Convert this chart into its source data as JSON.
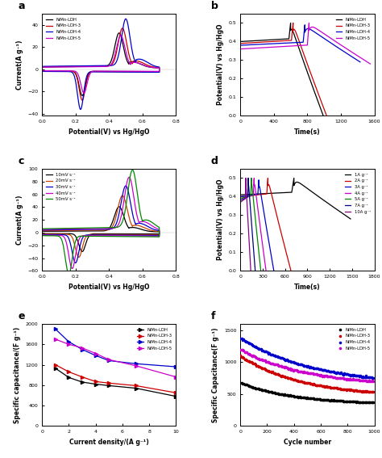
{
  "panel_a": {
    "label": "a",
    "xlabel": "Potential(V) vs Hg/HgO",
    "ylabel": "Current(A g⁻¹)",
    "xlim": [
      0.0,
      0.8
    ],
    "ylim": [
      -42,
      50
    ],
    "xticks": [
      0.0,
      0.2,
      0.4,
      0.6,
      0.8
    ],
    "legend": [
      "NiMn-LDH",
      "NiMn-LDH-3",
      "NiMn-LDH-4",
      "NiMn-LDH-5"
    ],
    "colors": [
      "#000000",
      "#cc0000",
      "#0000cc",
      "#cc00cc"
    ],
    "curves": [
      {
        "anodic_peak": 0.46,
        "anodic_amp": 30,
        "cathodic_peak": 0.24,
        "cathodic_amp": 22,
        "base": 2.0
      },
      {
        "anodic_peak": 0.48,
        "anodic_amp": 34,
        "cathodic_peak": 0.24,
        "cathodic_amp": 26,
        "base": 2.2
      },
      {
        "anodic_peak": 0.5,
        "anodic_amp": 42,
        "cathodic_peak": 0.23,
        "cathodic_amp": 34,
        "base": 2.5
      },
      {
        "anodic_peak": 0.47,
        "anodic_amp": 28,
        "cathodic_peak": 0.25,
        "cathodic_amp": 20,
        "base": 1.8
      }
    ]
  },
  "panel_b": {
    "label": "b",
    "xlabel": "Time(s)",
    "ylabel": "Potential(V) vs Hg/HgO",
    "xlim": [
      0,
      1600
    ],
    "ylim": [
      0.0,
      0.55
    ],
    "xticks": [
      0,
      400,
      800,
      1200,
      1600
    ],
    "yticks": [
      0.0,
      0.1,
      0.2,
      0.3,
      0.4,
      0.5
    ],
    "legend": [
      "NiMn-LDH",
      "NiMn-LDH-3",
      "NiMn-LDH-4",
      "NiMn-LDH-5"
    ],
    "colors": [
      "#000000",
      "#cc0000",
      "#0000cc",
      "#cc00cc"
    ],
    "curves": [
      {
        "v_flat": 0.4,
        "v_peak": 0.5,
        "t_rise": 580,
        "t_peak": 600,
        "t_disc_end": 990,
        "v_disc_end": 0.0
      },
      {
        "v_flat": 0.39,
        "v_peak": 0.5,
        "t_rise": 610,
        "t_peak": 630,
        "t_disc_end": 1030,
        "v_disc_end": 0.0
      },
      {
        "v_flat": 0.38,
        "v_peak": 0.49,
        "t_rise": 750,
        "t_peak": 770,
        "t_disc_end": 1430,
        "v_disc_end": 0.29
      },
      {
        "v_flat": 0.36,
        "v_peak": 0.5,
        "t_rise": 800,
        "t_peak": 820,
        "t_disc_end": 1550,
        "v_disc_end": 0.28
      }
    ]
  },
  "panel_c": {
    "label": "c",
    "xlabel": "Potential(V) vs Hg/HgO",
    "ylabel": "Current(A g⁻¹)",
    "xlim": [
      0.0,
      0.8
    ],
    "ylim": [
      -60,
      100
    ],
    "xticks": [
      0.0,
      0.2,
      0.4,
      0.6,
      0.8
    ],
    "legend": [
      "10mV s⁻¹",
      "20mV s⁻¹",
      "30mV s⁻¹",
      "40mV s⁻¹",
      "50mV s⁻¹"
    ],
    "colors": [
      "#000000",
      "#cc4400",
      "#0000cc",
      "#cc00cc",
      "#008800"
    ],
    "curves": [
      {
        "anodic_peak": 0.46,
        "anodic_amp": 38,
        "cathodic_peak": 0.24,
        "cathodic_amp": 28,
        "base": 2.0
      },
      {
        "anodic_peak": 0.48,
        "anodic_amp": 54,
        "cathodic_peak": 0.22,
        "cathodic_amp": 36,
        "base": 3.0
      },
      {
        "anodic_peak": 0.5,
        "anodic_amp": 68,
        "cathodic_peak": 0.2,
        "cathodic_amp": 44,
        "base": 4.0
      },
      {
        "anodic_peak": 0.52,
        "anodic_amp": 80,
        "cathodic_peak": 0.18,
        "cathodic_amp": 52,
        "base": 5.0
      },
      {
        "anodic_peak": 0.54,
        "anodic_amp": 90,
        "cathodic_peak": 0.16,
        "cathodic_amp": 60,
        "base": 6.0
      }
    ]
  },
  "panel_d": {
    "label": "d",
    "xlabel": "Time(s)",
    "ylabel": "Potential(V) vs Hg/HgO",
    "xlim": [
      0,
      1800
    ],
    "ylim": [
      0.0,
      0.55
    ],
    "xticks": [
      0,
      300,
      600,
      900,
      1200,
      1500,
      1800
    ],
    "yticks": [
      0.0,
      0.1,
      0.2,
      0.3,
      0.4,
      0.5
    ],
    "legend": [
      "1A g⁻¹",
      "2A g⁻¹",
      "3A g⁻¹",
      "4A g⁻¹",
      "5A g⁻¹",
      "7A g⁻¹",
      "10A g⁻¹"
    ],
    "colors": [
      "#000000",
      "#cc0000",
      "#0000cc",
      "#cc00cc",
      "#008800",
      "#000088",
      "#880088"
    ],
    "curves": [
      {
        "v_flat": 0.41,
        "v_peak": 0.5,
        "t_rise": 690,
        "t_peak": 720,
        "t_disc_end": 1480,
        "v_disc_end": 0.28
      },
      {
        "v_flat": 0.4,
        "v_peak": 0.5,
        "t_rise": 355,
        "t_peak": 370,
        "t_disc_end": 680,
        "v_disc_end": 0.0
      },
      {
        "v_flat": 0.4,
        "v_peak": 0.49,
        "t_rise": 235,
        "t_peak": 248,
        "t_disc_end": 450,
        "v_disc_end": 0.0
      },
      {
        "v_flat": 0.39,
        "v_peak": 0.5,
        "t_rise": 175,
        "t_peak": 185,
        "t_disc_end": 345,
        "v_disc_end": 0.0
      },
      {
        "v_flat": 0.39,
        "v_peak": 0.5,
        "t_rise": 140,
        "t_peak": 148,
        "t_disc_end": 275,
        "v_disc_end": 0.0
      },
      {
        "v_flat": 0.38,
        "v_peak": 0.5,
        "t_rise": 100,
        "t_peak": 106,
        "t_disc_end": 200,
        "v_disc_end": 0.0
      },
      {
        "v_flat": 0.37,
        "v_peak": 0.5,
        "t_rise": 68,
        "t_peak": 72,
        "t_disc_end": 140,
        "v_disc_end": 0.0
      }
    ]
  },
  "panel_e": {
    "label": "e",
    "xlabel": "Current density/(A g⁻¹)",
    "ylabel": "Specific capacitance/(F g⁻¹)",
    "xlim": [
      0,
      10
    ],
    "ylim": [
      0,
      2000
    ],
    "xticks": [
      0,
      2,
      4,
      6,
      8,
      10
    ],
    "yticks": [
      0,
      400,
      800,
      1200,
      1600,
      2000
    ],
    "legend": [
      "NiMn-LDH",
      "NiMn-LDH-3",
      "NiMn-LDH-4",
      "NiMn-LDH-5"
    ],
    "colors": [
      "#000000",
      "#cc0000",
      "#0000cc",
      "#cc00cc"
    ],
    "data": {
      "x": [
        1,
        2,
        3,
        4,
        5,
        7,
        10
      ],
      "NiMn-LDH": [
        1130,
        950,
        860,
        820,
        790,
        740,
        580
      ],
      "NiMn-LDH-3": [
        1200,
        1060,
        960,
        870,
        840,
        790,
        650
      ],
      "NiMn-LDH-4": [
        1900,
        1650,
        1500,
        1380,
        1280,
        1220,
        1160
      ],
      "NiMn-LDH-5": [
        1700,
        1600,
        1530,
        1420,
        1300,
        1180,
        960
      ]
    }
  },
  "panel_f": {
    "label": "f",
    "xlabel": "Cycle number",
    "ylabel": "Specific Capacitance(F g⁻¹)",
    "xlim": [
      0,
      1000
    ],
    "ylim": [
      0,
      1600
    ],
    "xticks": [
      0,
      200,
      400,
      600,
      800,
      1000
    ],
    "yticks": [
      0,
      500,
      1000,
      1500
    ],
    "legend": [
      "NiMn-LDH",
      "NiMn-LDH-3",
      "NiMn-LDH-4",
      "NiMn-LDH-5"
    ],
    "colors": [
      "#000000",
      "#cc0000",
      "#0000cc",
      "#cc00cc"
    ],
    "data": {
      "x_dense": 50,
      "NiMn-LDH": {
        "start": 680,
        "end": 340,
        "decay": 0.0025
      },
      "NiMn-LDH-3": {
        "start": 1100,
        "end": 460,
        "decay": 0.0022
      },
      "NiMn-LDH-4": {
        "start": 1380,
        "end": 630,
        "decay": 0.0018
      },
      "NiMn-LDH-5": {
        "start": 1200,
        "end": 620,
        "decay": 0.002
      }
    }
  }
}
